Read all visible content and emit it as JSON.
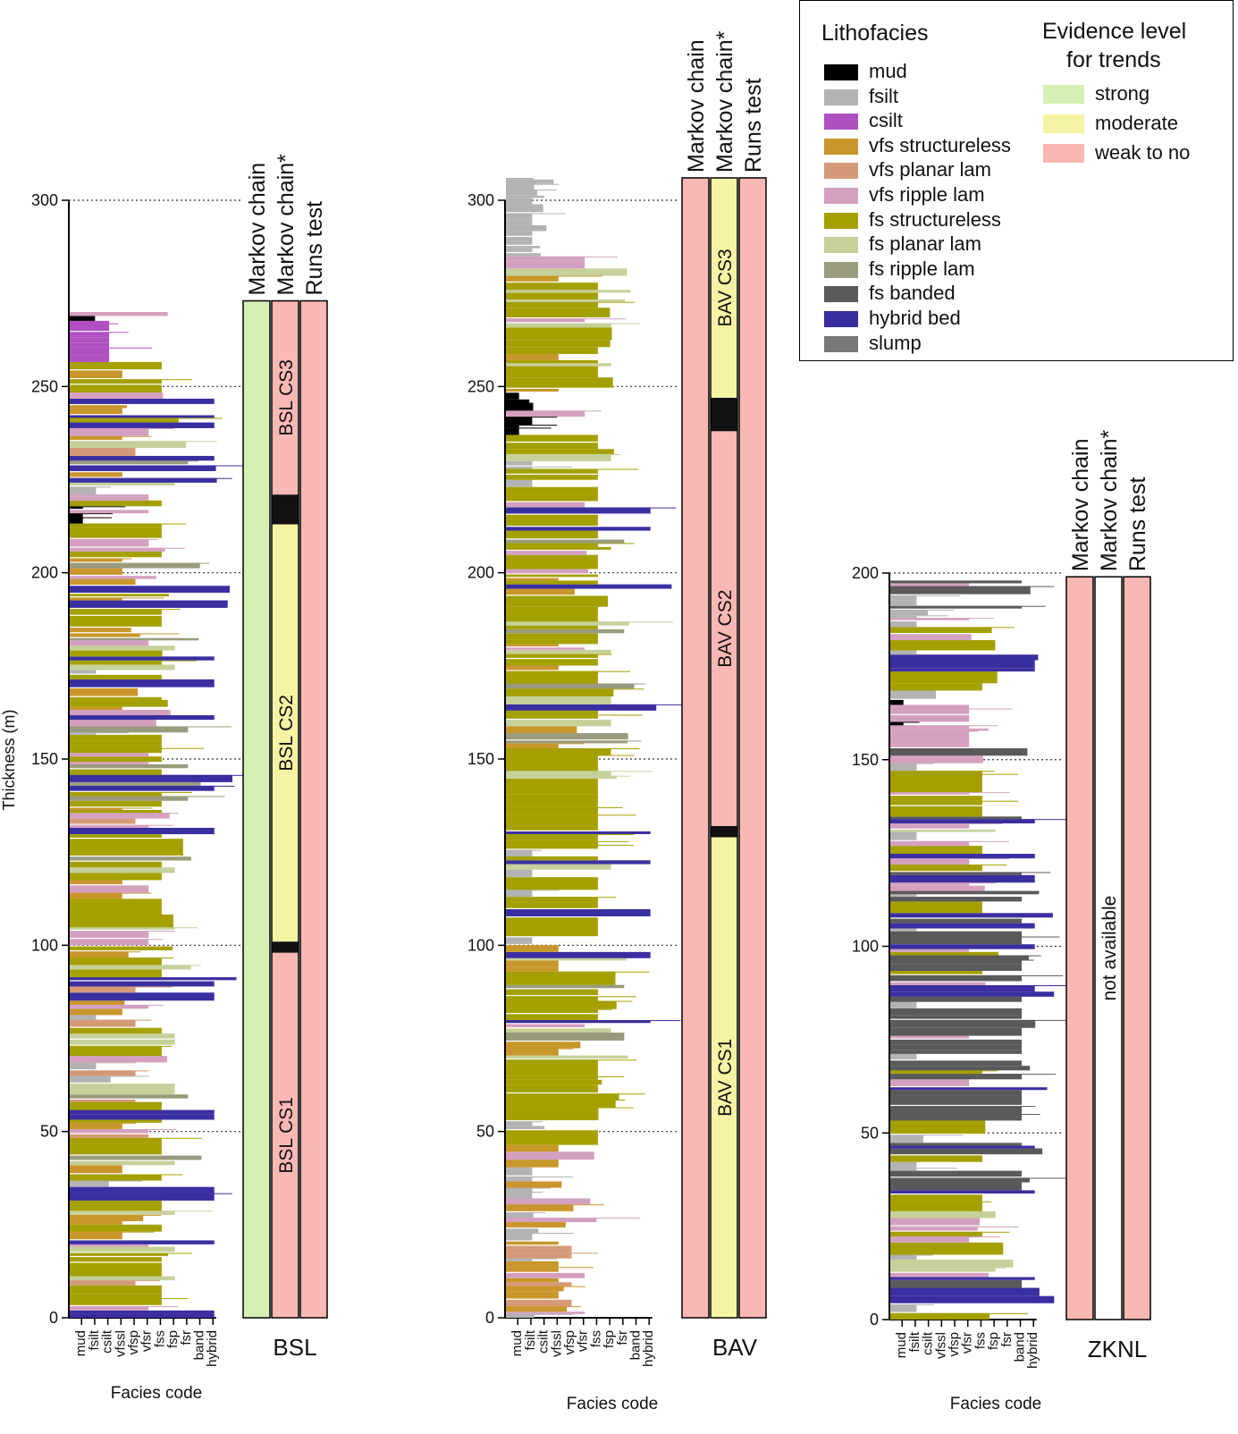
{
  "y_axis_label": "Thickness (m)",
  "x_axis_label": "Facies code",
  "facies_codes": [
    "mud",
    "fsilt",
    "csilt",
    "vfssl",
    "vfsp",
    "vfsr",
    "fss",
    "fsp",
    "fsr",
    "band",
    "hybrid"
  ],
  "facies_colors": [
    "#000000",
    "#b3b3b3",
    "#b04fc0",
    "#c9962b",
    "#d49a78",
    "#d4a0c0",
    "#a4a000",
    "#c6d09a",
    "#9a9a7e",
    "#5a5a5a",
    "#3a2fa0"
  ],
  "legend": {
    "lithofacies_title": "Lithofacies",
    "lithofacies": [
      {
        "label": "mud",
        "color": "#000000"
      },
      {
        "label": "fsilt",
        "color": "#b3b3b3"
      },
      {
        "label": "csilt",
        "color": "#b04fc0"
      },
      {
        "label": "vfs structureless",
        "color": "#c9962b"
      },
      {
        "label": "vfs planar lam",
        "color": "#d49a78"
      },
      {
        "label": "vfs ripple lam",
        "color": "#d4a0c0"
      },
      {
        "label": "fs structureless",
        "color": "#a4a000"
      },
      {
        "label": "fs planar lam",
        "color": "#c6d09a"
      },
      {
        "label": "fs ripple lam",
        "color": "#9a9a7e"
      },
      {
        "label": "fs banded",
        "color": "#5a5a5a"
      },
      {
        "label": "hybrid bed",
        "color": "#3a2fa0"
      },
      {
        "label": "slump",
        "color": "#777777"
      }
    ],
    "evidence_title_line1": "Evidence level",
    "evidence_title_line2": "for trends",
    "evidence": [
      {
        "label": "strong",
        "color": "#d4f0b4"
      },
      {
        "label": "moderate",
        "color": "#f6f3a4"
      },
      {
        "label": "weak to no",
        "color": "#f9b8b4"
      }
    ]
  },
  "test_headers": [
    "Markov chain",
    "Markov chain*",
    "Runs test"
  ],
  "chart_data": [
    {
      "type": "stratigraphic-log",
      "section": "BSL",
      "ylim": [
        0,
        300
      ],
      "yticks": [
        0,
        50,
        100,
        150,
        200,
        250,
        300
      ],
      "log_top_m": 270,
      "trend_columns": [
        {
          "test": "Markov chain",
          "segments": [
            {
              "from": 0,
              "to": 273,
              "level": "strong"
            }
          ]
        },
        {
          "test": "Markov chain*",
          "segments": [
            {
              "from": 0,
              "to": 98,
              "level": "weak to no",
              "label": "BSL CS1"
            },
            {
              "from": 98,
              "to": 101,
              "level": "boundary"
            },
            {
              "from": 101,
              "to": 213,
              "level": "moderate",
              "label": "BSL CS2"
            },
            {
              "from": 213,
              "to": 221,
              "level": "boundary"
            },
            {
              "from": 221,
              "to": 273,
              "level": "weak to no",
              "label": "BSL CS3"
            }
          ]
        },
        {
          "test": "Runs test",
          "segments": [
            {
              "from": 0,
              "to": 273,
              "level": "weak to no"
            }
          ]
        }
      ]
    },
    {
      "type": "stratigraphic-log",
      "section": "BAV",
      "ylim": [
        0,
        300
      ],
      "yticks": [
        0,
        50,
        100,
        150,
        200,
        250,
        300
      ],
      "log_top_m": 306,
      "trend_columns": [
        {
          "test": "Markov chain",
          "segments": [
            {
              "from": 0,
              "to": 306,
              "level": "weak to no"
            }
          ]
        },
        {
          "test": "Markov chain*",
          "segments": [
            {
              "from": 0,
              "to": 129,
              "level": "moderate",
              "label": "BAV CS1"
            },
            {
              "from": 129,
              "to": 132,
              "level": "boundary"
            },
            {
              "from": 132,
              "to": 238,
              "level": "weak to no",
              "label": "BAV CS2"
            },
            {
              "from": 238,
              "to": 247,
              "level": "boundary"
            },
            {
              "from": 247,
              "to": 306,
              "level": "moderate",
              "label": "BAV CS3"
            }
          ]
        },
        {
          "test": "Runs test",
          "segments": [
            {
              "from": 0,
              "to": 306,
              "level": "weak to no"
            }
          ]
        }
      ]
    },
    {
      "type": "stratigraphic-log",
      "section": "ZKNL",
      "ylim": [
        0,
        200
      ],
      "yticks": [
        0,
        50,
        100,
        150,
        200
      ],
      "log_top_m": 198,
      "trend_columns": [
        {
          "test": "Markov chain",
          "segments": [
            {
              "from": 0,
              "to": 199,
              "level": "weak to no"
            }
          ]
        },
        {
          "test": "Markov chain*",
          "segments": [
            {
              "from": 0,
              "to": 199,
              "level": "not available",
              "label": "not available"
            }
          ]
        },
        {
          "test": "Runs test",
          "segments": [
            {
              "from": 0,
              "to": 199,
              "level": "weak to no"
            }
          ]
        }
      ]
    }
  ]
}
